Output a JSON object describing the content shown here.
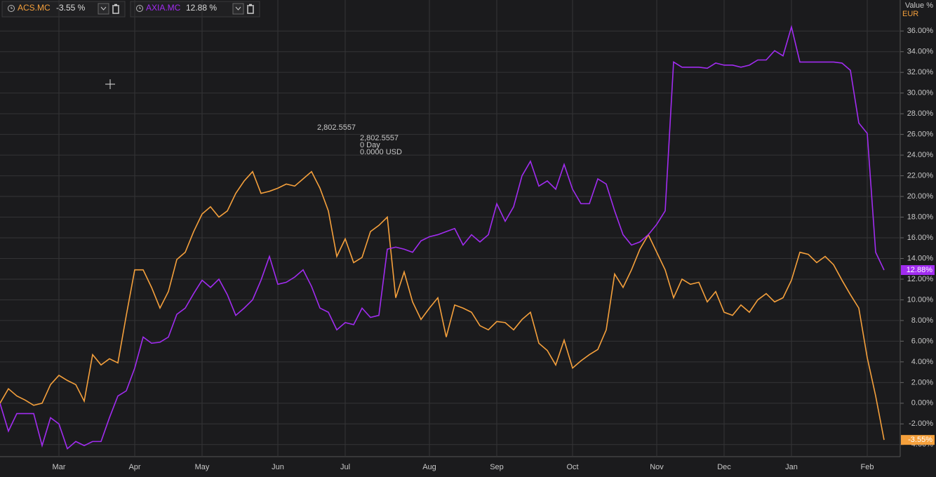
{
  "chart_data": {
    "type": "line",
    "value_axis_title": "Value %",
    "currency": "EUR",
    "annotations": [
      "2,802.5557",
      "2,802.5557",
      "0 Day",
      "0.0000 USD"
    ],
    "categories": [
      null,
      null,
      null,
      null,
      null,
      null,
      null,
      "Mar",
      null,
      null,
      null,
      null,
      null,
      null,
      null,
      null,
      "Apr",
      null,
      null,
      null,
      null,
      null,
      null,
      null,
      "May",
      null,
      null,
      null,
      null,
      null,
      null,
      null,
      null,
      "Jun",
      null,
      null,
      null,
      null,
      null,
      null,
      null,
      "Jul",
      null,
      null,
      null,
      null,
      null,
      null,
      null,
      null,
      null,
      "Aug",
      null,
      null,
      null,
      null,
      null,
      null,
      null,
      "Sep",
      null,
      null,
      null,
      null,
      null,
      null,
      null,
      null,
      "Oct",
      null,
      null,
      null,
      null,
      null,
      null,
      null,
      null,
      null,
      "Nov",
      null,
      null,
      null,
      null,
      null,
      null,
      null,
      "Dec",
      null,
      null,
      null,
      null,
      null,
      null,
      null,
      "Jan",
      null,
      null,
      null,
      null,
      null,
      null,
      null,
      null,
      "Feb",
      null,
      null
    ],
    "series": [
      {
        "name": "ACS.MC",
        "color": "#f5a03c",
        "legend_label": "-3.55 %",
        "end_label": "-3.55%",
        "values": [
          0,
          1.4,
          0.7,
          0.3,
          -0.2,
          0,
          1.8,
          2.7,
          2.2,
          1.8,
          0.2,
          4.7,
          3.7,
          4.3,
          3.9,
          8.5,
          12.9,
          12.9,
          11.2,
          9.2,
          10.8,
          13.9,
          14.6,
          16.6,
          18.3,
          19.0,
          18.0,
          18.6,
          20.3,
          21.5,
          22.4,
          20.3,
          20.5,
          20.8,
          21.2,
          21.0,
          21.7,
          22.4,
          20.8,
          18.6,
          14.2,
          15.9,
          13.6,
          14.1,
          16.6,
          17.2,
          18.0,
          10.2,
          12.7,
          9.8,
          8.1,
          9.2,
          10.2,
          6.4,
          9.5,
          9.2,
          8.8,
          7.5,
          7.1,
          7.9,
          7.8,
          7.1,
          8.1,
          8.8,
          5.8,
          5.1,
          3.7,
          6.1,
          3.4,
          4.1,
          4.7,
          5.2,
          7.1,
          12.5,
          11.2,
          12.9,
          14.9,
          16.3,
          14.6,
          12.9,
          10.2,
          12.0,
          11.5,
          11.7,
          9.8,
          10.8,
          8.8,
          8.5,
          9.5,
          8.8,
          10.0,
          10.6,
          9.8,
          10.2,
          11.9,
          14.6,
          14.4,
          13.6,
          14.2,
          13.4,
          11.9,
          10.5,
          9.2,
          4.4,
          0.7,
          -3.55
        ]
      },
      {
        "name": "AXIA.MC",
        "color": "#a12cf0",
        "legend_label": "12.88 %",
        "end_label": "12.88%",
        "values": [
          0,
          -2.7,
          -1.0,
          -1.0,
          -1.0,
          -4.1,
          -1.4,
          -2.0,
          -4.4,
          -3.7,
          -4.1,
          -3.7,
          -3.7,
          -1.4,
          0.7,
          1.2,
          3.4,
          6.4,
          5.8,
          5.9,
          6.4,
          8.6,
          9.2,
          10.6,
          11.9,
          11.2,
          12.0,
          10.5,
          8.5,
          9.2,
          10.0,
          11.9,
          14.2,
          11.5,
          11.7,
          12.2,
          12.9,
          11.3,
          9.2,
          8.8,
          7.1,
          7.8,
          7.6,
          9.2,
          8.3,
          8.5,
          14.9,
          15.1,
          14.9,
          14.6,
          15.7,
          16.1,
          16.3,
          16.6,
          16.9,
          15.3,
          16.3,
          15.6,
          16.3,
          19.3,
          17.6,
          19.0,
          22.0,
          23.4,
          21.0,
          21.5,
          20.7,
          23.1,
          20.7,
          19.3,
          19.3,
          21.7,
          21.2,
          18.6,
          16.3,
          15.3,
          15.6,
          16.3,
          17.3,
          18.6,
          33.0,
          32.5,
          32.5,
          32.5,
          32.4,
          32.9,
          32.7,
          32.7,
          32.5,
          32.7,
          33.2,
          33.2,
          34.1,
          33.6,
          36.4,
          33.0,
          33.0,
          33.0,
          33.0,
          33.0,
          32.9,
          32.2,
          27.1,
          26.1,
          14.6,
          12.88
        ]
      }
    ],
    "ylim": [
      -5.1,
      39
    ],
    "yticks": [
      {
        "value": -4,
        "label": "-4.00%"
      },
      {
        "value": -2,
        "label": "-2.00%"
      },
      {
        "value": 0,
        "label": "0.00%"
      },
      {
        "value": 2,
        "label": "2.00%"
      },
      {
        "value": 4,
        "label": "4.00%"
      },
      {
        "value": 6,
        "label": "6.00%"
      },
      {
        "value": 8,
        "label": "8.00%"
      },
      {
        "value": 10,
        "label": "10.00%"
      },
      {
        "value": 12,
        "label": "12.00%"
      },
      {
        "value": 14,
        "label": "14.00%"
      },
      {
        "value": 16,
        "label": "16.00%"
      },
      {
        "value": 18,
        "label": "18.00%"
      },
      {
        "value": 20,
        "label": "20.00%"
      },
      {
        "value": 22,
        "label": "22.00%"
      },
      {
        "value": 24,
        "label": "24.00%"
      },
      {
        "value": 26,
        "label": "26.00%"
      },
      {
        "value": 28,
        "label": "28.00%"
      },
      {
        "value": 30,
        "label": "30.00%"
      },
      {
        "value": 32,
        "label": "32.00%"
      },
      {
        "value": 34,
        "label": "34.00%"
      },
      {
        "value": 36,
        "label": "36.00%"
      }
    ],
    "grid": true
  }
}
